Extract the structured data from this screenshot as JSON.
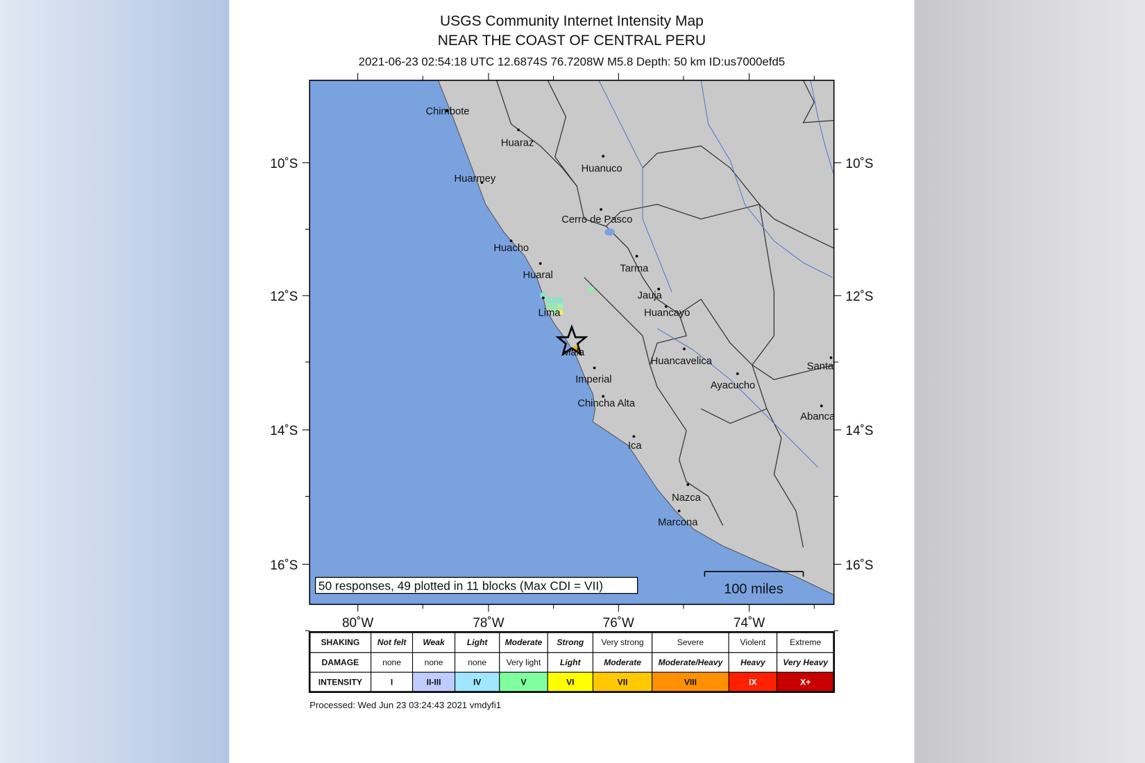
{
  "header": {
    "title": "USGS Community Internet Intensity Map",
    "region": "NEAR THE COAST OF CENTRAL PERU",
    "event": "2021-06-23 02:54:18 UTC 12.6874S 76.7208W M5.8 Depth: 50 km ID:us7000efd5"
  },
  "map": {
    "cities": [
      "Chimbote",
      "Huaraz",
      "Huanuco",
      "Huarmey",
      "Cerro de Pasco",
      "Huacho",
      "Tarma",
      "Huaral",
      "Jauja",
      "Lima",
      "Huancayo",
      "Mala",
      "Huancavelica",
      "Santa",
      "Imperial",
      "Ayacucho",
      "Chincha Alta",
      "Abanca",
      "Ica",
      "Nazca",
      "Marcona"
    ],
    "lat_labels": [
      "10˚S",
      "12˚S",
      "14˚S",
      "16˚S"
    ],
    "lon_labels": [
      "80˚W",
      "78˚W",
      "76˚W",
      "74˚W"
    ],
    "responses": "50 responses, 49 plotted in 11 blocks (Max CDI = VII)",
    "scale_bar": "100 miles"
  },
  "legend": {
    "rows": [
      [
        "SHAKING",
        "Not felt",
        "Weak",
        "Light",
        "Moderate",
        "Strong",
        "Very strong",
        "Severe",
        "Violent",
        "Extreme"
      ],
      [
        "DAMAGE",
        "none",
        "none",
        "none",
        "Very light",
        "Light",
        "Moderate",
        "Moderate/Heavy",
        "Heavy",
        "Very Heavy"
      ],
      [
        "INTENSITY",
        "I",
        "II-III",
        "IV",
        "V",
        "VI",
        "VII",
        "VIII",
        "IX",
        "X+"
      ]
    ]
  },
  "footer": "Processed: Wed Jun 23 03:24:43 2021 vmdyfi1"
}
